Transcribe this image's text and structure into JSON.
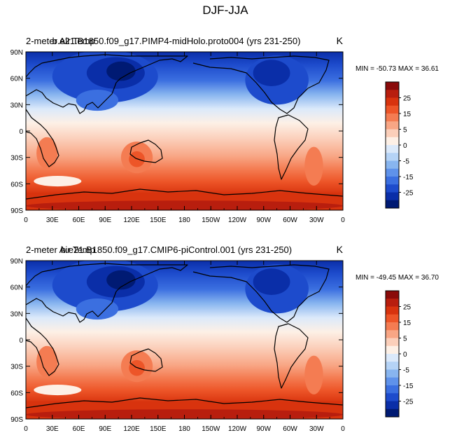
{
  "figure_title": "DJF-JJA",
  "colorbar": {
    "levels": [
      -30,
      -25,
      -20,
      -15,
      -10,
      -5,
      -2.5,
      2.5,
      5,
      10,
      15,
      20,
      25,
      30
    ],
    "labels": [
      "25",
      "15",
      "5",
      "0",
      "-5",
      "-15",
      "-25"
    ],
    "colors_top_to_bottom": [
      "#8a0a0a",
      "#b81e0e",
      "#d8330e",
      "#ed5528",
      "#f47c52",
      "#f8a685",
      "#fbcfba",
      "#fdf0e6",
      "#dbe9fa",
      "#b5d3f6",
      "#88b5ef",
      "#5f92ea",
      "#3b6fe0",
      "#1d4bcc",
      "#0a2ea8",
      "#001a73"
    ]
  },
  "chart_data": [
    {
      "type": "heatmap",
      "title_left": "2-meter Air Temp",
      "title_center": "b.e21.B1850.f09_g17.PIMP4-midHolo.proto004 (yrs 231-250)",
      "units": "K",
      "stats": "MIN = -50.73 MAX =  36.61",
      "min": -50.73,
      "max": 36.61,
      "x_ticks": [
        "0",
        "30E",
        "60E",
        "90E",
        "120E",
        "150E",
        "180",
        "150W",
        "120W",
        "90W",
        "60W",
        "30W",
        "0"
      ],
      "y_ticks": [
        "90N",
        "60N",
        "30N",
        "0",
        "30S",
        "60S",
        "90S"
      ],
      "xlim": [
        0,
        360
      ],
      "ylim": [
        -90,
        90
      ]
    },
    {
      "type": "heatmap",
      "title_left": "2-meter Air Temp",
      "title_center": "b.e21.B1850.f09_g17.CMIP6-piControl.001 (yrs 231-250)",
      "units": "K",
      "stats": "MIN = -49.45 MAX =  36.70",
      "min": -49.45,
      "max": 36.7,
      "x_ticks": [
        "0",
        "30E",
        "60E",
        "90E",
        "120E",
        "150E",
        "180",
        "150W",
        "120W",
        "90W",
        "60W",
        "30W",
        "0"
      ],
      "y_ticks": [
        "90N",
        "60N",
        "30N",
        "0",
        "30S",
        "60S",
        "90S"
      ],
      "xlim": [
        0,
        360
      ],
      "ylim": [
        -90,
        90
      ]
    }
  ]
}
